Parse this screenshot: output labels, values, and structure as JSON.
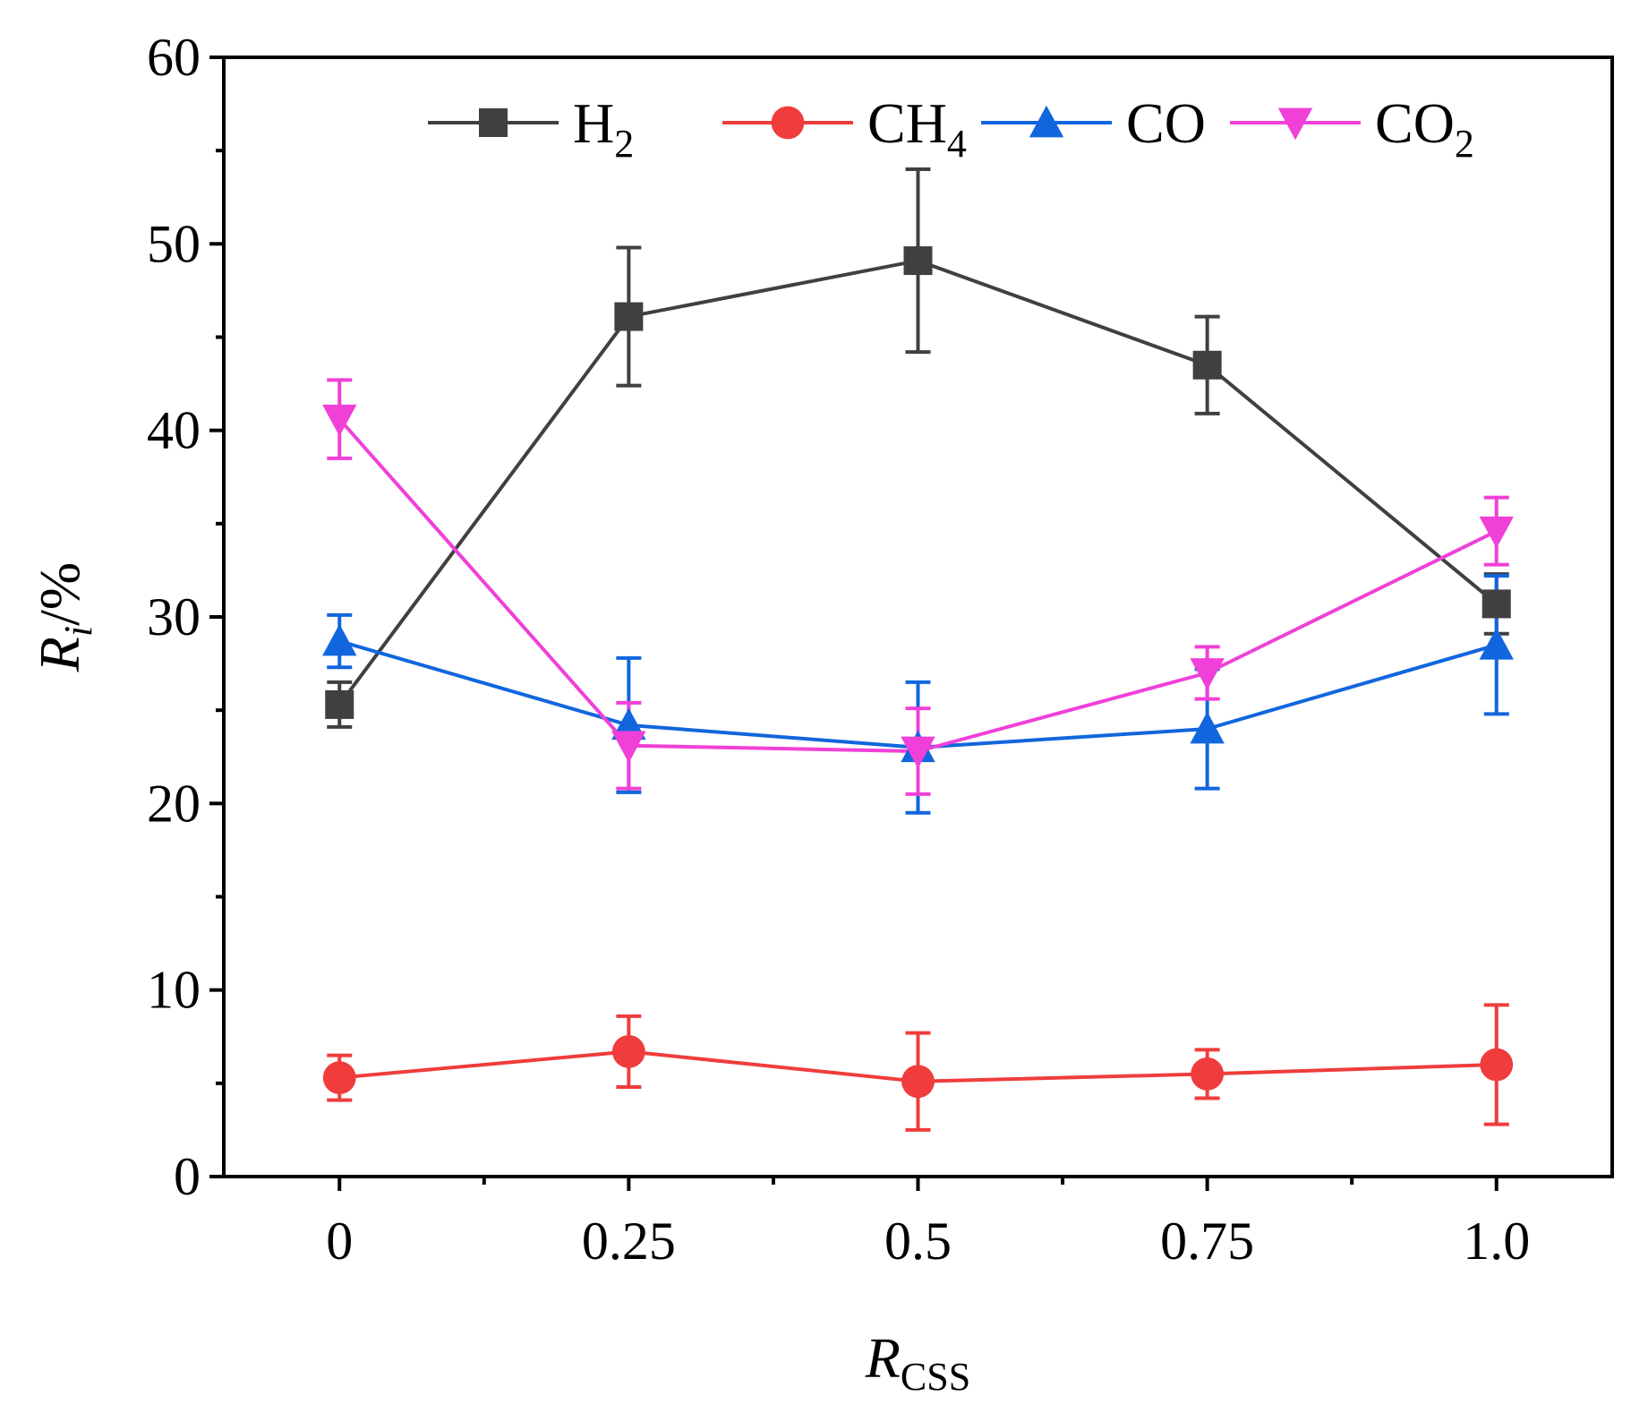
{
  "chart_data": {
    "type": "line",
    "title": "",
    "x": [
      0,
      0.25,
      0.5,
      0.75,
      1.0
    ],
    "xticks": [
      "0",
      "0.25",
      "0.5",
      "0.75",
      "1.0"
    ],
    "xlabel": {
      "main": "R",
      "sub": "CSS"
    },
    "ylabel": {
      "main": "R",
      "sub": "i",
      "suffix": "/%"
    },
    "ylim": [
      0,
      60
    ],
    "yticks": [
      0,
      10,
      20,
      30,
      40,
      50,
      60
    ],
    "legend_position": "top",
    "series": [
      {
        "key": "h2",
        "name": "H",
        "sub": "2",
        "color": "#404040",
        "marker": "square",
        "values": [
          25.3,
          46.1,
          49.1,
          43.5,
          30.7
        ],
        "errors": [
          1.2,
          3.7,
          4.9,
          2.6,
          1.6
        ]
      },
      {
        "key": "ch4",
        "name": "CH",
        "sub": "4",
        "color": "#f03c3c",
        "marker": "circle",
        "values": [
          5.3,
          6.7,
          5.1,
          5.5,
          6.0
        ],
        "errors": [
          1.2,
          1.9,
          2.6,
          1.3,
          3.2
        ]
      },
      {
        "key": "co",
        "name": "CO",
        "sub": "",
        "color": "#1166dd",
        "marker": "triangle-up",
        "values": [
          28.7,
          24.2,
          23.0,
          24.0,
          28.5
        ],
        "errors": [
          1.4,
          3.6,
          3.5,
          3.2,
          3.7
        ]
      },
      {
        "key": "co2",
        "name": "CO",
        "sub": "2",
        "color": "#f040d8",
        "marker": "triangle-down",
        "values": [
          40.6,
          23.1,
          22.8,
          27.0,
          34.6
        ],
        "errors": [
          2.1,
          2.3,
          2.3,
          1.4,
          1.8
        ]
      }
    ]
  }
}
